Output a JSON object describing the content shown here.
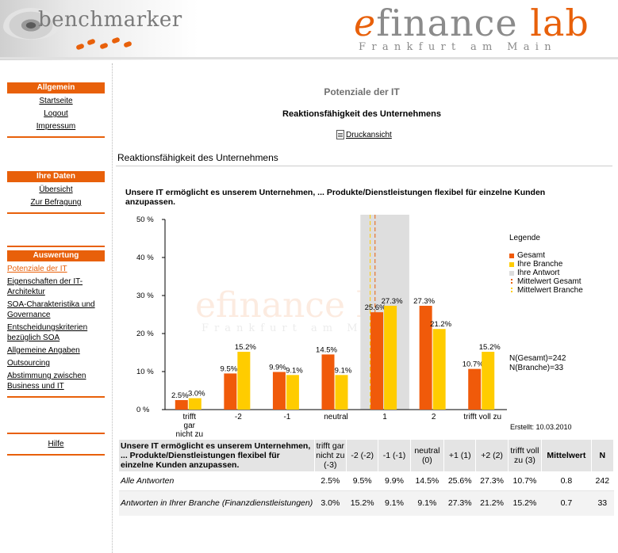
{
  "header": {
    "left_logo": "benchmarker",
    "right_logo_e": "e",
    "right_logo_finance": "finance",
    "right_logo_lab": "lab",
    "right_logo_sub": "Frankfurt am Main"
  },
  "sidebar": {
    "groups": [
      {
        "title": "Allgemein",
        "items": [
          "Startseite",
          "Logout",
          "Impressum"
        ]
      },
      {
        "title": "Ihre Daten",
        "items": [
          "Übersicht",
          "Zur Befragung"
        ]
      },
      {
        "title": "Auswertung",
        "items": [
          "Potenziale der IT",
          "Eigenschaften der IT-Architektur",
          "SOA-Charakteristika und Governance",
          "Entscheidungskriterien bezüglich SOA",
          "Allgemeine Angaben",
          "Outsourcing",
          "Abstimmung zwischen Business und IT"
        ]
      }
    ],
    "help": "Hilfe"
  },
  "main": {
    "page_title": "Potenziale der IT",
    "sub_title": "Reaktionsfähigkeit des Unternehmens",
    "print_label": "Druckansicht",
    "section_head": "Reaktionsfähigkeit des Unternehmens",
    "question": "Unsere IT ermöglicht es unserem Unternehmen, ... Produkte/Dienstleistungen flexibel für einzelne Kunden anzupassen."
  },
  "chart_data": {
    "type": "bar",
    "categories": [
      "trifft gar nicht zu",
      "-2",
      "-1",
      "neutral",
      "1",
      "2",
      "trifft voll zu"
    ],
    "series": [
      {
        "name": "Gesamt",
        "values": [
          2.5,
          9.5,
          9.9,
          14.5,
          25.6,
          27.3,
          10.7
        ],
        "color": "#f05a0a"
      },
      {
        "name": "Ihre Branche",
        "values": [
          3.0,
          15.2,
          9.1,
          9.1,
          27.3,
          21.2,
          15.2
        ],
        "color": "#ffcc00"
      }
    ],
    "value_labels": {
      "Gesamt": [
        "2.5%",
        "9.5%",
        "9.9%",
        "14.5%",
        "25.6%",
        "27.3%",
        "10.7%"
      ],
      "Ihre Branche": [
        "3.0%",
        "15.2%",
        "9.1%",
        "9.1%",
        "27.3%",
        "21.2%",
        "15.2%"
      ]
    },
    "y_ticks": [
      "0 %",
      "10 %",
      "20 %",
      "30 %",
      "40 %",
      "50 %"
    ],
    "ylim": [
      0,
      50
    ],
    "highlight_category_index": 4,
    "mean_total": 0.8,
    "mean_branch": 0.7,
    "legend": {
      "title": "Legende",
      "items": [
        {
          "label": "Gesamt",
          "color": "#f05a0a",
          "style": "box"
        },
        {
          "label": "Ihre Branche",
          "color": "#ffcc00",
          "style": "box"
        },
        {
          "label": "Ihre Antwort",
          "color": "#dcdcdc",
          "style": "box"
        },
        {
          "label": "Mittelwert Gesamt",
          "color": "#e8600a",
          "style": "dash"
        },
        {
          "label": "Mittelwert Branche",
          "color": "#ffcc00",
          "style": "dash"
        }
      ]
    },
    "n_total": "N(Gesamt)=242",
    "n_branch": "N(Branche)=33",
    "created": "Erstellt:  10.03.2010"
  },
  "table": {
    "question": "Unsere IT ermöglicht es unserem Unternehmen, ... Produkte/Dienstleistungen flexibel für einzelne Kunden anzupassen.",
    "columns": [
      "trifft gar nicht zu (-3)",
      "-2 (-2)",
      "-1 (-1)",
      "neutral (0)",
      "+1 (1)",
      "+2 (2)",
      "trifft voll zu (3)"
    ],
    "col_mean": "Mittelwert",
    "col_n": "N",
    "rows": [
      {
        "label": "Alle Antworten",
        "values": [
          "2.5%",
          "9.5%",
          "9.9%",
          "14.5%",
          "25.6%",
          "27.3%",
          "10.7%"
        ],
        "mean": "0.8",
        "n": "242"
      },
      {
        "label": "Antworten in Ihrer Branche (Finanzdienstleistungen)",
        "values": [
          "3.0%",
          "15.2%",
          "9.1%",
          "9.1%",
          "27.3%",
          "21.2%",
          "15.2%"
        ],
        "mean": "0.7",
        "n": "33"
      }
    ]
  }
}
